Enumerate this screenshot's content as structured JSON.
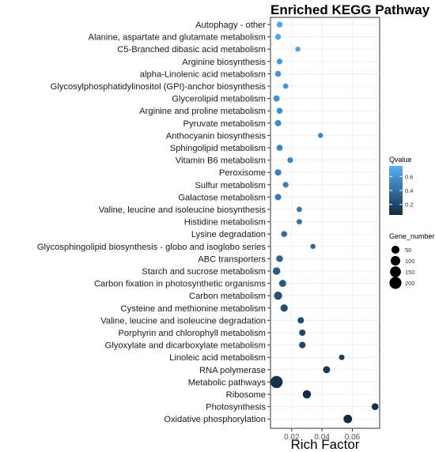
{
  "chart_data": {
    "type": "scatter",
    "title": "Enriched KEGG Pathway",
    "xlabel": "Rich Factor",
    "ylabel": "",
    "xlim": [
      0.006,
      0.078
    ],
    "xticks": [
      0.02,
      0.04,
      0.06
    ],
    "xtick_labels": [
      "0.02",
      "0.04",
      "0.06"
    ],
    "grid": true,
    "legend_position": "right",
    "color_legend": {
      "title": "Qvalue",
      "range": [
        0.05,
        0.75
      ],
      "ticks": [
        0.2,
        0.4,
        0.6
      ],
      "tick_labels": [
        "0.2",
        "0.4",
        "0.6"
      ],
      "low_color": "#132B43",
      "high_color": "#56B1F7"
    },
    "size_legend": {
      "title": "Gene_number",
      "values": [
        50,
        100,
        150,
        200
      ],
      "labels": [
        "50",
        "100",
        "150",
        "200"
      ]
    },
    "points": [
      {
        "pathway": "Autophagy - other",
        "rich_factor": 0.012,
        "qvalue": 0.7,
        "gene_number": 12
      },
      {
        "pathway": "Alanine, aspartate and glutamate metabolism",
        "rich_factor": 0.011,
        "qvalue": 0.7,
        "gene_number": 12
      },
      {
        "pathway": "C5-Branched dibasic acid metabolism",
        "rich_factor": 0.024,
        "qvalue": 0.68,
        "gene_number": 4
      },
      {
        "pathway": "Arginine biosynthesis",
        "rich_factor": 0.012,
        "qvalue": 0.62,
        "gene_number": 10
      },
      {
        "pathway": "alpha-Linolenic acid metabolism",
        "rich_factor": 0.011,
        "qvalue": 0.6,
        "gene_number": 12
      },
      {
        "pathway": "Glycosylphosphatidylinositol (GPI)-anchor biosynthesis",
        "rich_factor": 0.016,
        "qvalue": 0.6,
        "gene_number": 6
      },
      {
        "pathway": "Glycerolipid metabolism",
        "rich_factor": 0.01,
        "qvalue": 0.58,
        "gene_number": 18
      },
      {
        "pathway": "Arginine and proline metabolism",
        "rich_factor": 0.012,
        "qvalue": 0.56,
        "gene_number": 14
      },
      {
        "pathway": "Pyruvate metabolism",
        "rich_factor": 0.011,
        "qvalue": 0.55,
        "gene_number": 18
      },
      {
        "pathway": "Anthocyanin biosynthesis",
        "rich_factor": 0.039,
        "qvalue": 0.52,
        "gene_number": 4
      },
      {
        "pathway": "Sphingolipid metabolism",
        "rich_factor": 0.012,
        "qvalue": 0.52,
        "gene_number": 14
      },
      {
        "pathway": "Vitamin B6 metabolism",
        "rich_factor": 0.019,
        "qvalue": 0.5,
        "gene_number": 8
      },
      {
        "pathway": "Peroxisome",
        "rich_factor": 0.011,
        "qvalue": 0.5,
        "gene_number": 20
      },
      {
        "pathway": "Sulfur metabolism",
        "rich_factor": 0.016,
        "qvalue": 0.48,
        "gene_number": 10
      },
      {
        "pathway": "Galactose metabolism",
        "rich_factor": 0.011,
        "qvalue": 0.47,
        "gene_number": 18
      },
      {
        "pathway": "Valine, leucine and isoleucine biosynthesis",
        "rich_factor": 0.025,
        "qvalue": 0.44,
        "gene_number": 6
      },
      {
        "pathway": "Histidine metabolism",
        "rich_factor": 0.025,
        "qvalue": 0.42,
        "gene_number": 6
      },
      {
        "pathway": "Lysine degradation",
        "rich_factor": 0.015,
        "qvalue": 0.4,
        "gene_number": 14
      },
      {
        "pathway": "Glycosphingolipid biosynthesis - globo and isoglobo series",
        "rich_factor": 0.034,
        "qvalue": 0.36,
        "gene_number": 4
      },
      {
        "pathway": "ABC transporters",
        "rich_factor": 0.012,
        "qvalue": 0.34,
        "gene_number": 24
      },
      {
        "pathway": "Starch and sucrose metabolism",
        "rich_factor": 0.01,
        "qvalue": 0.3,
        "gene_number": 40
      },
      {
        "pathway": "Carbon fixation in photosynthetic organisms",
        "rich_factor": 0.014,
        "qvalue": 0.28,
        "gene_number": 30
      },
      {
        "pathway": "Carbon metabolism",
        "rich_factor": 0.011,
        "qvalue": 0.25,
        "gene_number": 55
      },
      {
        "pathway": "Cysteine and methionine metabolism",
        "rich_factor": 0.015,
        "qvalue": 0.24,
        "gene_number": 35
      },
      {
        "pathway": "Valine, leucine and isoleucine degradation",
        "rich_factor": 0.026,
        "qvalue": 0.22,
        "gene_number": 18
      },
      {
        "pathway": "Porphyrin and chlorophyll metabolism",
        "rich_factor": 0.027,
        "qvalue": 0.2,
        "gene_number": 18
      },
      {
        "pathway": "Glyoxylate and dicarboxylate metabolism",
        "rich_factor": 0.027,
        "qvalue": 0.18,
        "gene_number": 20
      },
      {
        "pathway": "Linoleic acid metabolism",
        "rich_factor": 0.053,
        "qvalue": 0.15,
        "gene_number": 8
      },
      {
        "pathway": "RNA polymerase",
        "rich_factor": 0.043,
        "qvalue": 0.12,
        "gene_number": 30
      },
      {
        "pathway": "Metabolic pathways",
        "rich_factor": 0.01,
        "qvalue": 0.08,
        "gene_number": 210
      },
      {
        "pathway": "Ribosome",
        "rich_factor": 0.03,
        "qvalue": 0.07,
        "gene_number": 60
      },
      {
        "pathway": "Photosynthesis",
        "rich_factor": 0.075,
        "qvalue": 0.06,
        "gene_number": 25
      },
      {
        "pathway": "Oxidative phosphorylation",
        "rich_factor": 0.057,
        "qvalue": 0.05,
        "gene_number": 65
      }
    ]
  }
}
